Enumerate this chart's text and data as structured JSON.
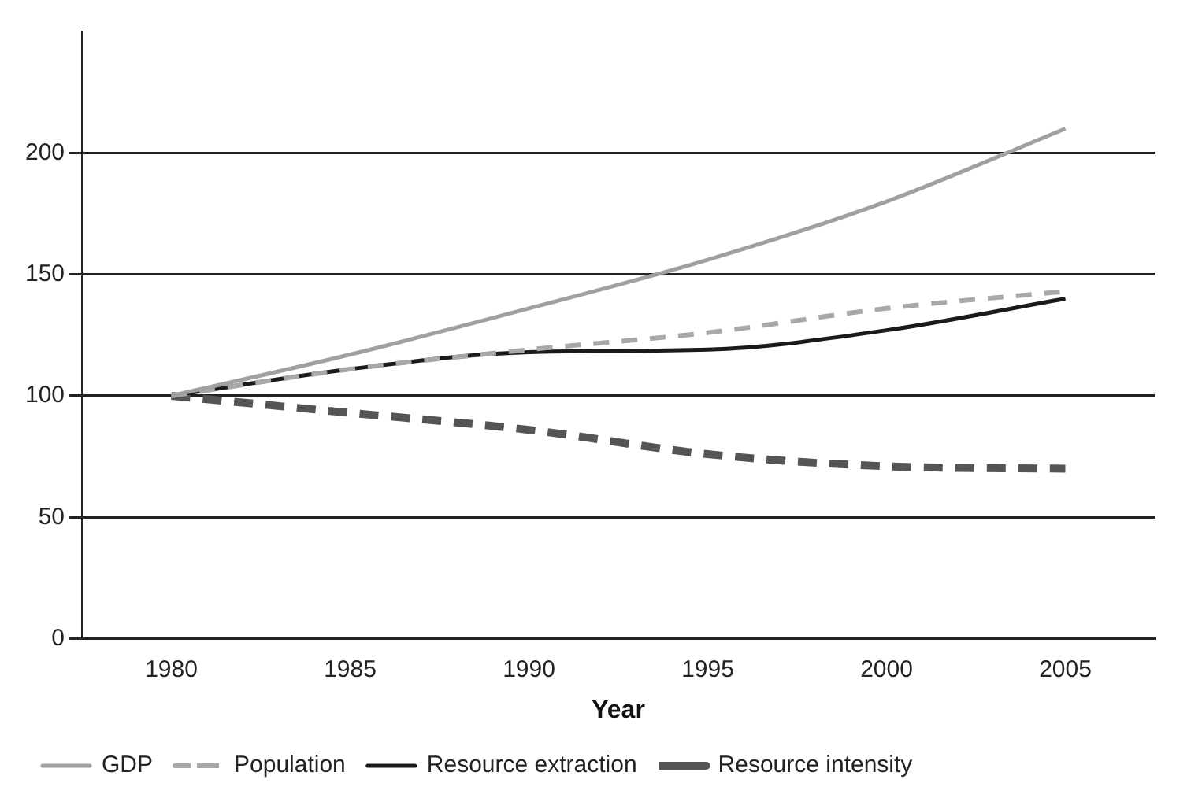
{
  "chart_data": {
    "type": "line",
    "xlabel": "Year",
    "x": [
      1980,
      1985,
      1990,
      1995,
      2000,
      2005
    ],
    "series": [
      {
        "name": "GDP",
        "color": "#a0a0a0",
        "line_style": "solid",
        "values": [
          100,
          117,
          136,
          156,
          180,
          210
        ]
      },
      {
        "name": "Population",
        "color": "#a8a8a8",
        "line_style": "dashed",
        "values": [
          100,
          111,
          119,
          126,
          136,
          143
        ]
      },
      {
        "name": "Resource extraction",
        "color": "#1a1a1a",
        "line_style": "solid",
        "values": [
          100,
          111,
          118,
          119,
          127,
          140
        ]
      },
      {
        "name": "Resource intensity",
        "color": "#555555",
        "line_style": "dashed",
        "values": [
          100,
          93,
          86,
          76,
          71,
          70
        ]
      }
    ],
    "xlim": [
      1977.5,
      2007.5
    ],
    "xticks": [
      1980,
      1985,
      1990,
      1995,
      2000,
      2005
    ],
    "ylim": [
      0,
      250
    ],
    "yticks": [
      0,
      50,
      100,
      150,
      200
    ],
    "grid": "y",
    "legend": "bottom",
    "marker": "none"
  }
}
